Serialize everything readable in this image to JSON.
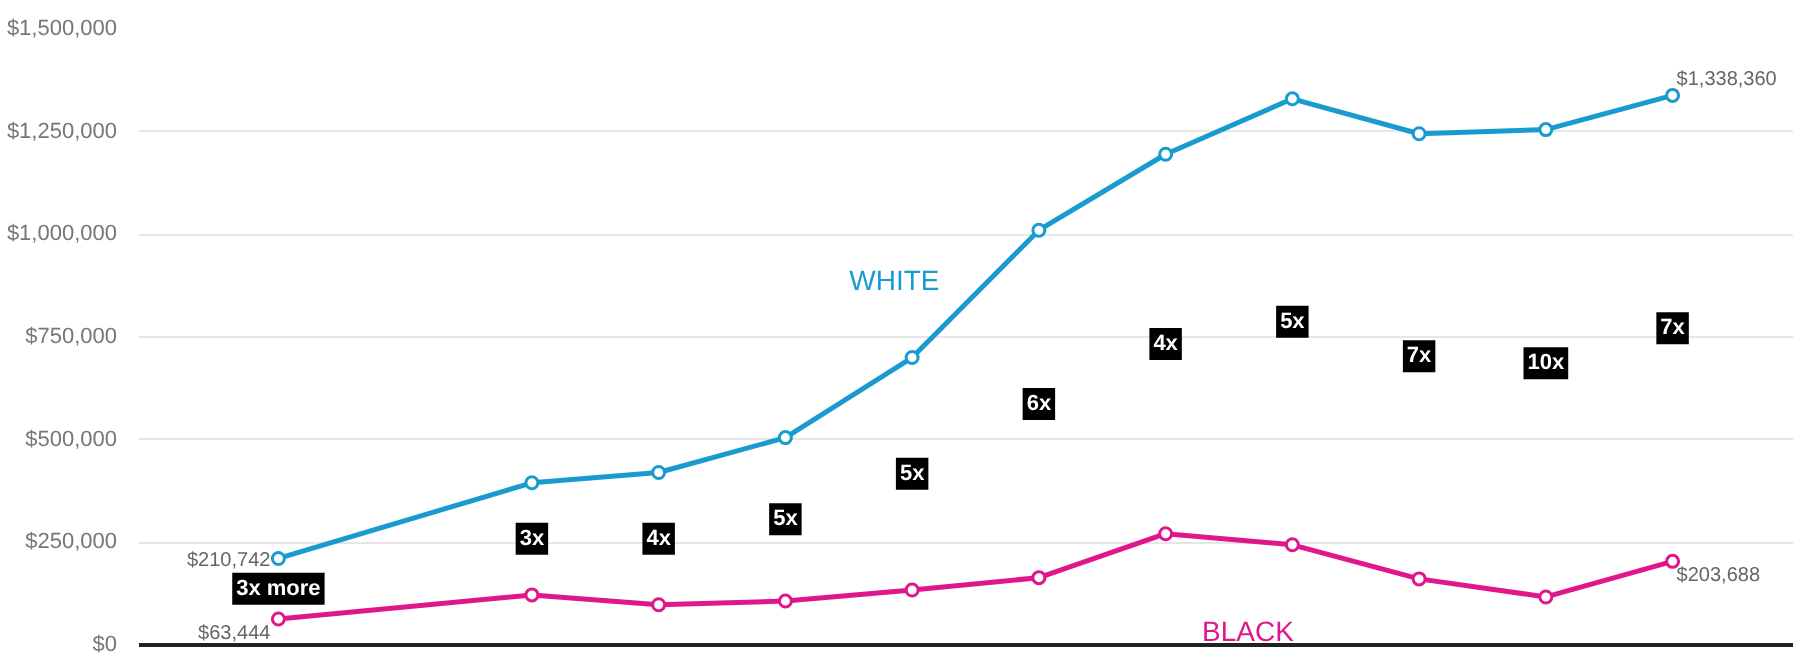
{
  "chart_data": {
    "type": "line",
    "categories": [
      null,
      null,
      null,
      null,
      null,
      null,
      null,
      null,
      null,
      null,
      null,
      null
    ],
    "ylim": [
      0,
      1500000
    ],
    "yticks": [
      {
        "value": 0,
        "label": "$0"
      },
      {
        "value": 250000,
        "label": "$250,000"
      },
      {
        "value": 500000,
        "label": "$500,000"
      },
      {
        "value": 750000,
        "label": "$750,000"
      },
      {
        "value": 1000000,
        "label": "$1,000,000"
      },
      {
        "value": 1250000,
        "label": "$1,250,000"
      },
      {
        "value": 1500000,
        "label": "$1,500,000"
      }
    ],
    "tick_labels": "y",
    "grid": "y",
    "marker": "circle",
    "line_style": "solid",
    "series": [
      {
        "name": "WHITE",
        "color": "#1a9bcf",
        "values": [
          210742,
          null,
          395000,
          420000,
          505000,
          700000,
          1010000,
          1195000,
          1330000,
          1245000,
          1255000,
          1338360
        ],
        "value_labels": [
          "$210,742",
          null,
          null,
          null,
          null,
          null,
          null,
          null,
          null,
          null,
          null,
          "$1,338,360"
        ]
      },
      {
        "name": "BLACK",
        "color": "#e0168c",
        "values": [
          63444,
          null,
          122000,
          98000,
          107000,
          134000,
          164000,
          271000,
          244000,
          161000,
          117000,
          203688
        ],
        "value_labels": [
          "$63,444",
          null,
          null,
          null,
          null,
          null,
          null,
          null,
          null,
          null,
          null,
          "$203,688"
        ]
      }
    ],
    "annotations": [
      "3x more",
      "3x",
      "4x",
      "5x",
      "5x",
      "6x",
      "4x",
      "5x",
      "7x",
      "10x",
      "7x"
    ]
  }
}
